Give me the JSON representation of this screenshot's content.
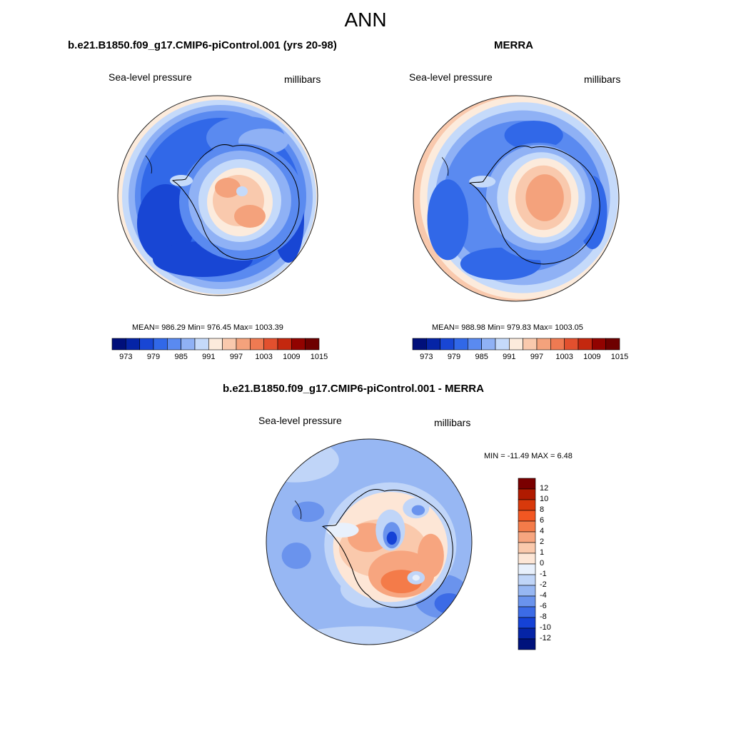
{
  "figure": {
    "title": "ANN"
  },
  "panels": [
    {
      "id": "model",
      "title": "b.e21.B1850.f09_g17.CMIP6-piControl.001 (yrs 20-98)",
      "variable": "Sea-level pressure",
      "units": "millibars",
      "stats": "MEAN= 986.29  Min= 976.45  Max= 1003.39",
      "mean": 986.29,
      "min": 976.45,
      "max": 1003.39
    },
    {
      "id": "obs",
      "title": "MERRA",
      "variable": "Sea-level pressure",
      "units": "millibars",
      "stats": "MEAN= 988.98  Min= 979.83  Max= 1003.05",
      "mean": 988.98,
      "min": 979.83,
      "max": 1003.05
    },
    {
      "id": "diff",
      "title": "b.e21.B1850.f09_g17.CMIP6-piControl.001 - MERRA",
      "variable": "Sea-level pressure",
      "units": "millibars",
      "stats": "MIN = -11.49 MAX =   6.48",
      "min": -11.49,
      "max": 6.48
    }
  ],
  "colorbar_abs": {
    "labels": [
      "973",
      "979",
      "985",
      "991",
      "997",
      "1003",
      "1009",
      "1015"
    ],
    "colors": [
      "#000f7a",
      "#0524a6",
      "#1846d4",
      "#3168e8",
      "#5a8af0",
      "#8fb1f5",
      "#c5dafa",
      "#fcebdc",
      "#f9c9ad",
      "#f4a27c",
      "#ef7a52",
      "#e2502e",
      "#c4280f",
      "#920300",
      "#6e0000"
    ]
  },
  "colorbar_diff": {
    "labels": [
      "12",
      "10",
      "8",
      "6",
      "4",
      "2",
      "1",
      "0",
      "-1",
      "-2",
      "-4",
      "-6",
      "-8",
      "-10",
      "-12"
    ],
    "colors": [
      "#7a0000",
      "#b01a00",
      "#d8390b",
      "#f25722",
      "#f47b49",
      "#f7a57f",
      "#fac9ac",
      "#fde6d6",
      "#e8f0fc",
      "#c0d5f8",
      "#97b7f3",
      "#6a93ed",
      "#3c6be6",
      "#1542d6",
      "#0524a6",
      "#00127c"
    ]
  },
  "colors": {
    "deep_blue": "#1846d4",
    "mid_blue": "#3168e8",
    "light_blue": "#8fb1f5",
    "pale_blue": "#c5dafa",
    "pale_orange": "#fcebdc",
    "orange": "#f4a27c",
    "coast": "#000000"
  }
}
